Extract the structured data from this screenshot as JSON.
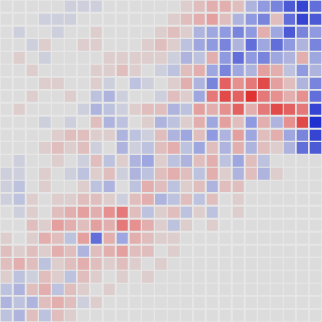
{
  "chart_data": {
    "type": "heatmap",
    "tick_labels": false,
    "zlim": [
      -1,
      1
    ],
    "cells": [
      [
        0,
        0,
        0,
        0,
        0,
        -0.1,
        -0.1,
        -0.1,
        0,
        0,
        0,
        0,
        0,
        0,
        0.1,
        0.2,
        0.3,
        0.3,
        0.2,
        -0.3,
        -0.5,
        -0.6,
        -0.8,
        -0.9,
        -0.7
      ],
      [
        0,
        0,
        0,
        -0.1,
        -0.1,
        -0.1,
        0,
        0,
        0,
        0,
        0,
        0,
        0,
        0.1,
        0.2,
        0.3,
        0.4,
        0.2,
        -0.3,
        -0.5,
        -0.6,
        0.2,
        -0.7,
        -0.9,
        -0.8
      ],
      [
        0,
        -0.1,
        0,
        0,
        -0.1,
        0,
        0,
        0.1,
        0,
        0,
        0,
        0,
        0.1,
        0.2,
        0.1,
        -0.3,
        -0.4,
        -0.5,
        -0.6,
        -0.5,
        0.3,
        -0.4,
        -0.8,
        -0.6,
        -0.5
      ],
      [
        0,
        0,
        -0.1,
        0.1,
        0,
        0,
        0.1,
        0.1,
        0,
        0,
        0,
        0.1,
        0.2,
        0.1,
        -0.2,
        -0.4,
        -0.5,
        -0.6,
        -0.3,
        -0.7,
        -0.4,
        -0.7,
        -0.5,
        -0.3,
        -0.6
      ],
      [
        0,
        0.1,
        0,
        -0.1,
        0,
        0,
        0,
        0,
        0.1,
        0.1,
        0.1,
        0.1,
        0.1,
        -0.1,
        -0.3,
        -0.2,
        0.3,
        -0.5,
        -0.7,
        -0.5,
        -0.6,
        -0.4,
        -0.3,
        0.3,
        -0.4
      ],
      [
        0,
        0,
        0.1,
        0,
        0,
        0,
        0,
        0.1,
        0.1,
        0.2,
        0.1,
        0,
        -0.1,
        -0.2,
        0.2,
        0.3,
        -0.4,
        -0.6,
        -0.4,
        -0.3,
        0.4,
        0.3,
        -0.2,
        -0.5,
        -0.3
      ],
      [
        0,
        0,
        0,
        0.1,
        0.1,
        0,
        0,
        0.1,
        -0.1,
        0,
        -0.2,
        -0.1,
        0,
        0.1,
        0.3,
        -0.3,
        -0.6,
        0.7,
        0.5,
        0.6,
        0.8,
        0.4,
        0.2,
        -0.3,
        -0.6
      ],
      [
        0,
        0,
        0.1,
        0,
        0,
        0.1,
        0,
        -0.2,
        -0.3,
        -0.1,
        0,
        0,
        -0.1,
        0.2,
        0.1,
        -0.4,
        0.6,
        0.8,
        0.7,
        0.9,
        0.6,
        0.5,
        0.3,
        0.5,
        -0.7
      ],
      [
        0,
        0.1,
        0,
        0,
        0,
        0,
        -0.1,
        -0.3,
        -0.2,
        -0.1,
        0.1,
        0.2,
        0.2,
        -0.3,
        -0.2,
        0.4,
        0.3,
        0.5,
        0.7,
        0.3,
        0.6,
        0.8,
        0.7,
        0.6,
        -0.9
      ],
      [
        0,
        0,
        0,
        -0.1,
        0,
        -0.1,
        0,
        0.2,
        -0.3,
        -0.2,
        0,
        0.1,
        -0.3,
        -0.2,
        0.1,
        0.3,
        -0.4,
        0.4,
        0.2,
        -0.5,
        0.3,
        -0.3,
        0.5,
        0.8,
        -1.0
      ],
      [
        0,
        0,
        0,
        0,
        0.1,
        0.2,
        0.2,
        0.1,
        0.1,
        -0.3,
        -0.2,
        -0.1,
        0.2,
        -0.3,
        -0.4,
        0.2,
        -0.5,
        -0.3,
        0.4,
        -0.4,
        0.2,
        0.3,
        -0.4,
        -0.6,
        -0.9
      ],
      [
        0,
        0,
        0,
        0.1,
        0.2,
        0.1,
        0.2,
        -0.1,
        0,
        -0.3,
        -0.1,
        -0.2,
        0.2,
        0.3,
        -0.2,
        -0.4,
        0.2,
        -0.3,
        0.3,
        -0.3,
        0.2,
        0.1,
        -0.3,
        -0.7,
        -0.8
      ],
      [
        0,
        -0.1,
        0,
        0,
        0.1,
        0,
        -0.1,
        0.2,
        -0.2,
        0.1,
        -0.3,
        -0.4,
        0.1,
        -0.2,
        -0.3,
        0.2,
        0.3,
        -0.2,
        -0.4,
        0.2,
        -0.2,
        0,
        0,
        0,
        0
      ],
      [
        -0.1,
        -0.1,
        0,
        0.1,
        0,
        -0.1,
        -0.2,
        0.1,
        0.2,
        -0.1,
        -0.3,
        -0.2,
        0.2,
        0.3,
        0.2,
        -0.2,
        0.3,
        0.1,
        -0.3,
        0.2,
        -0.3,
        0.1,
        0,
        0,
        0
      ],
      [
        -0.1,
        -0.2,
        0,
        0.1,
        0,
        0,
        0.1,
        -0.2,
        -0.3,
        0,
        -0.2,
        0.3,
        0.2,
        -0.2,
        0.1,
        0.2,
        -0.3,
        0.2,
        0.2,
        0,
        0,
        0,
        0,
        0,
        0
      ],
      [
        -0.1,
        -0.2,
        0.1,
        0,
        0.1,
        0.1,
        0.2,
        0.2,
        0.1,
        -0.1,
        0.2,
        0.3,
        -0.3,
        -0.2,
        0.2,
        -0.2,
        0.2,
        0,
        0.1,
        0,
        0,
        0,
        0,
        0,
        0
      ],
      [
        0,
        -0.1,
        0.1,
        0,
        0.2,
        0.3,
        0.4,
        0.3,
        0.5,
        0.6,
        0.2,
        -0.2,
        0.1,
        0.2,
        -0.2,
        0.1,
        -0.2,
        0,
        0.1,
        0,
        0,
        0,
        0,
        0,
        0
      ],
      [
        0,
        0,
        0.2,
        0.1,
        0.4,
        0.3,
        0.2,
        0.4,
        0.3,
        0.6,
        0.5,
        0.3,
        0.1,
        -0.2,
        0.1,
        0,
        0.1,
        0,
        0,
        0,
        0,
        0,
        0,
        0,
        0
      ],
      [
        0.1,
        0,
        0.1,
        0.3,
        0.2,
        -0.2,
        0.4,
        -0.7,
        0.3,
        -0.4,
        0.3,
        0.2,
        0.1,
        0.1,
        0,
        0,
        0,
        0,
        0,
        0,
        0,
        0,
        0,
        0,
        0
      ],
      [
        0.2,
        0.1,
        0.2,
        0.1,
        0.3,
        0.2,
        -0.3,
        0.2,
        0.3,
        0.4,
        0.2,
        0.2,
        0,
        0.1,
        0,
        0,
        0,
        0,
        0,
        0,
        0,
        0,
        0,
        0,
        0
      ],
      [
        0.2,
        0.3,
        0.2,
        -0.2,
        0.1,
        0.2,
        0.3,
        0.2,
        0.1,
        0.2,
        0.1,
        0,
        0.1,
        0,
        0,
        0,
        0,
        0,
        0,
        0,
        0,
        0,
        0,
        0,
        0
      ],
      [
        0.1,
        -0.2,
        -0.1,
        0.2,
        0.1,
        -0.2,
        0.2,
        0.1,
        0,
        0.1,
        0,
        0.1,
        0,
        0,
        0,
        0,
        0,
        0,
        0,
        0,
        0,
        0,
        0,
        0,
        0
      ],
      [
        -0.2,
        -0.3,
        0.2,
        0.3,
        -0.2,
        0.2,
        0.1,
        0,
        0.1,
        0,
        0,
        0,
        0,
        0,
        0,
        0,
        0,
        0,
        0,
        0,
        0,
        0,
        0,
        0,
        0
      ],
      [
        -0.3,
        -0.2,
        -0.3,
        0.2,
        0.3,
        0.2,
        -0.1,
        0.1,
        0,
        0,
        0,
        0,
        0,
        0,
        0,
        0,
        0,
        0,
        0,
        0,
        0,
        0,
        0,
        0,
        0
      ],
      [
        -0.2,
        -0.3,
        0.2,
        -0.2,
        0.2,
        0.1,
        0,
        0,
        0,
        0,
        0,
        0,
        0,
        0,
        0,
        0,
        0,
        0,
        0,
        0,
        0,
        0,
        0,
        0,
        0
      ]
    ]
  }
}
